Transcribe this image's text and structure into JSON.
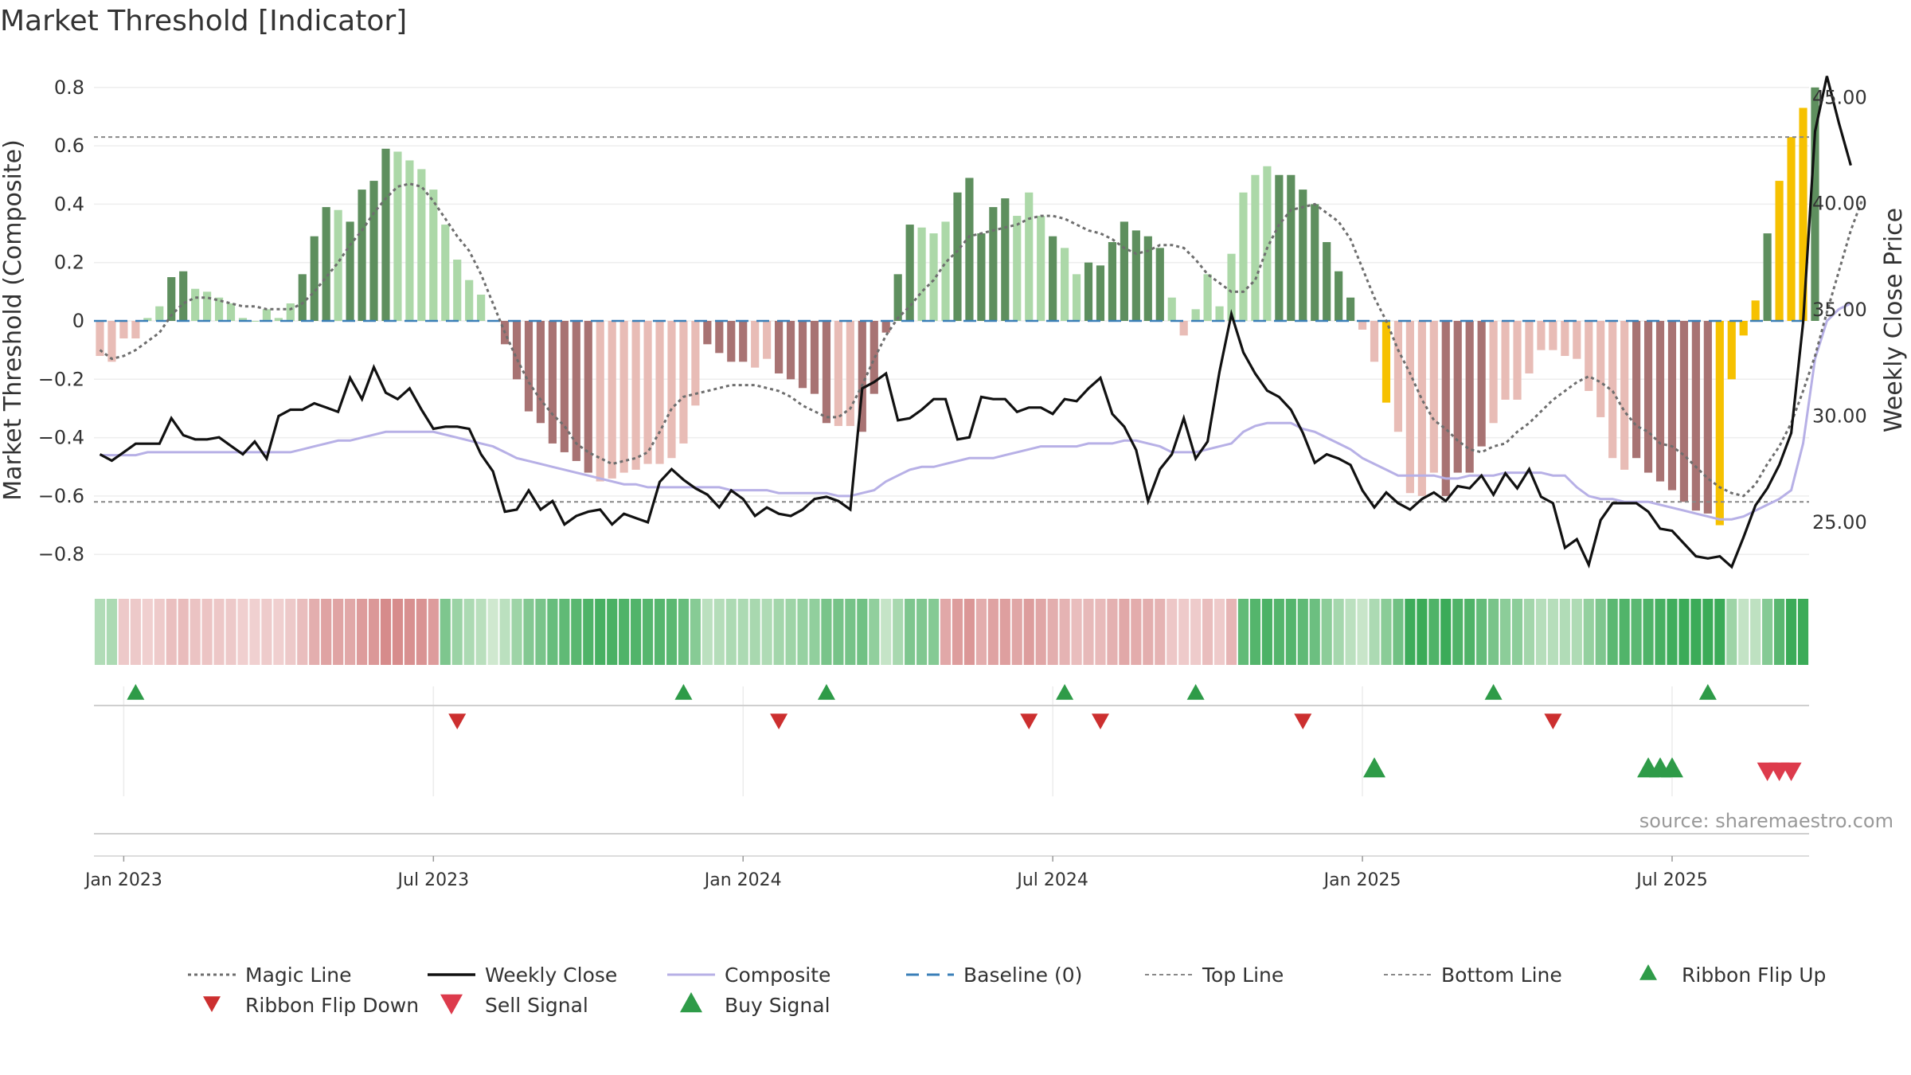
{
  "chart_data": {
    "type": "bar",
    "title": "Market Threshold [Indicator]",
    "ylabel": "Market Threshold (Composite)",
    "y2label": "Weekly Close Price",
    "ylim": [
      -0.88,
      0.8
    ],
    "y2lim": [
      22.2,
      46.4
    ],
    "yticks": [
      "0.8",
      "0.6",
      "0.4",
      "0.2",
      "0",
      "−0.2",
      "−0.4",
      "−0.6",
      "−0.8"
    ],
    "yticks_values": [
      0.8,
      0.6,
      0.4,
      0.2,
      0,
      -0.2,
      -0.4,
      -0.6,
      -0.8
    ],
    "y2ticks": [
      "45.00",
      "40.00",
      "35.00",
      "30.00",
      "25.00"
    ],
    "y2ticks_values": [
      45,
      40,
      35,
      30,
      25
    ],
    "xticks": [
      "Jan 2023",
      "Jul 2023",
      "Jan 2024",
      "Jul 2024",
      "Jan 2025",
      "Jul 2025"
    ],
    "xticks_weeks": [
      2,
      28,
      54,
      80,
      106,
      132
    ],
    "top_line": 0.63,
    "bottom_line": -0.62,
    "baseline": 0,
    "weeks": 144,
    "composite_bars": [
      -0.12,
      -0.14,
      -0.06,
      -0.06,
      0.01,
      0.05,
      0.15,
      0.17,
      0.11,
      0.1,
      0.08,
      0.06,
      0.01,
      0.0,
      0.04,
      0.01,
      0.06,
      0.16,
      0.29,
      0.39,
      0.38,
      0.34,
      0.45,
      0.48,
      0.59,
      0.58,
      0.55,
      0.52,
      0.45,
      0.33,
      0.21,
      0.14,
      0.09,
      0.0,
      -0.08,
      -0.2,
      -0.31,
      -0.35,
      -0.42,
      -0.45,
      -0.48,
      -0.52,
      -0.55,
      -0.54,
      -0.52,
      -0.51,
      -0.49,
      -0.49,
      -0.47,
      -0.42,
      -0.29,
      -0.08,
      -0.11,
      -0.14,
      -0.14,
      -0.16,
      -0.13,
      -0.18,
      -0.2,
      -0.23,
      -0.25,
      -0.35,
      -0.36,
      -0.36,
      -0.38,
      -0.25,
      -0.04,
      0.16,
      0.33,
      0.32,
      0.3,
      0.34,
      0.44,
      0.49,
      0.3,
      0.39,
      0.42,
      0.36,
      0.44,
      0.36,
      0.29,
      0.25,
      0.16,
      0.2,
      0.19,
      0.27,
      0.34,
      0.31,
      0.29,
      0.25,
      0.08,
      -0.05,
      0.04,
      0.16,
      0.05,
      0.23,
      0.44,
      0.5,
      0.53,
      0.5,
      0.5,
      0.45,
      0.4,
      0.27,
      0.17,
      0.08,
      -0.03,
      -0.14,
      -0.28,
      -0.38,
      -0.59,
      -0.6,
      -0.52,
      -0.6,
      -0.52,
      -0.52,
      -0.43,
      -0.35,
      -0.27,
      -0.27,
      -0.18,
      -0.1,
      -0.1,
      -0.12,
      -0.13,
      -0.24,
      -0.33,
      -0.47,
      -0.51,
      -0.47,
      -0.52,
      -0.55,
      -0.58,
      -0.62,
      -0.65,
      -0.66,
      -0.7,
      -0.2,
      -0.05,
      0.07,
      0.3,
      0.48,
      0.63,
      0.73,
      0.8
    ],
    "bar_colors": "LLLLllDDlllllllllDDDlDDDDllllllllLDDDDDDDDLLLLLLLLLDDDDLLDDDDDLLDDDDDLLLDDDDDLLLDLLDDDDDDDLLLLLLLLLDDDDDDDLLLLLLLDDDDLLLLLLLLLLLLDDDDDDDDDDDDDDDDLLLLLLLLLLL",
    "highlight_bars": [
      108,
      136,
      137,
      138,
      139,
      141,
      142,
      143
    ],
    "weekly_close": [
      28.2,
      27.9,
      28.3,
      28.7,
      28.7,
      28.7,
      29.9,
      29.1,
      28.9,
      28.9,
      29.0,
      28.6,
      28.2,
      28.8,
      28.0,
      30.0,
      30.3,
      30.3,
      30.6,
      30.4,
      30.2,
      31.8,
      30.8,
      32.3,
      31.1,
      30.8,
      31.3,
      30.3,
      29.4,
      29.5,
      29.5,
      29.4,
      28.2,
      27.4,
      25.5,
      25.6,
      26.5,
      25.6,
      26.0,
      24.9,
      25.3,
      25.5,
      25.6,
      24.9,
      25.4,
      25.2,
      25.0,
      26.9,
      27.5,
      27.0,
      26.6,
      26.3,
      25.7,
      26.5,
      26.1,
      25.3,
      25.7,
      25.4,
      25.3,
      25.6,
      26.1,
      26.2,
      26.0,
      25.6,
      31.3,
      31.6,
      32.0,
      29.8,
      29.9,
      30.3,
      30.8,
      30.8,
      28.9,
      29.0,
      30.9,
      30.8,
      30.8,
      30.2,
      30.4,
      30.4,
      30.1,
      30.8,
      30.7,
      31.3,
      31.8,
      30.1,
      29.5,
      28.4,
      26.0,
      27.5,
      28.2,
      29.9,
      28.0,
      28.8,
      32.1,
      34.8,
      33.0,
      32.0,
      31.2,
      30.9,
      30.3,
      29.2,
      27.8,
      28.2,
      28.0,
      27.7,
      26.5,
      25.7,
      26.4,
      25.9,
      25.6,
      26.1,
      26.4,
      26.0,
      26.7,
      26.6,
      27.2,
      26.3,
      27.3,
      26.6,
      27.5,
      26.2,
      25.9,
      23.8,
      24.2,
      23.0,
      25.1,
      25.9,
      25.9,
      25.9,
      25.5,
      24.7,
      24.6,
      24.0,
      23.4,
      23.3,
      23.4,
      22.9,
      24.3,
      25.8,
      26.6,
      27.7,
      29.2,
      34.4,
      43.4,
      46.0,
      43.8,
      41.8
    ],
    "composite_line": [
      -0.46,
      -0.46,
      -0.46,
      -0.46,
      -0.45,
      -0.45,
      -0.45,
      -0.45,
      -0.45,
      -0.45,
      -0.45,
      -0.45,
      -0.45,
      -0.45,
      -0.45,
      -0.45,
      -0.45,
      -0.44,
      -0.43,
      -0.42,
      -0.41,
      -0.41,
      -0.4,
      -0.39,
      -0.38,
      -0.38,
      -0.38,
      -0.38,
      -0.38,
      -0.39,
      -0.4,
      -0.41,
      -0.42,
      -0.43,
      -0.45,
      -0.47,
      -0.48,
      -0.49,
      -0.5,
      -0.51,
      -0.52,
      -0.53,
      -0.54,
      -0.55,
      -0.56,
      -0.56,
      -0.57,
      -0.57,
      -0.57,
      -0.57,
      -0.57,
      -0.57,
      -0.57,
      -0.58,
      -0.58,
      -0.58,
      -0.58,
      -0.59,
      -0.59,
      -0.59,
      -0.59,
      -0.59,
      -0.6,
      -0.6,
      -0.59,
      -0.58,
      -0.55,
      -0.53,
      -0.51,
      -0.5,
      -0.5,
      -0.49,
      -0.48,
      -0.47,
      -0.47,
      -0.47,
      -0.46,
      -0.45,
      -0.44,
      -0.43,
      -0.43,
      -0.43,
      -0.43,
      -0.42,
      -0.42,
      -0.42,
      -0.41,
      -0.41,
      -0.42,
      -0.43,
      -0.45,
      -0.45,
      -0.45,
      -0.44,
      -0.43,
      -0.42,
      -0.38,
      -0.36,
      -0.35,
      -0.35,
      -0.35,
      -0.37,
      -0.38,
      -0.4,
      -0.42,
      -0.44,
      -0.47,
      -0.49,
      -0.51,
      -0.53,
      -0.53,
      -0.53,
      -0.53,
      -0.54,
      -0.54,
      -0.53,
      -0.53,
      -0.53,
      -0.52,
      -0.52,
      -0.52,
      -0.52,
      -0.53,
      -0.53,
      -0.57,
      -0.6,
      -0.61,
      -0.61,
      -0.62,
      -0.62,
      -0.62,
      -0.63,
      -0.64,
      -0.65,
      -0.66,
      -0.67,
      -0.68,
      -0.68,
      -0.67,
      -0.65,
      -0.63,
      -0.61,
      -0.58,
      -0.42,
      -0.13,
      0.0,
      0.04,
      0.06
    ],
    "magic_line": [
      -0.1,
      -0.13,
      -0.12,
      -0.1,
      -0.07,
      -0.04,
      0.02,
      0.06,
      0.08,
      0.08,
      0.07,
      0.06,
      0.05,
      0.05,
      0.04,
      0.04,
      0.04,
      0.06,
      0.1,
      0.15,
      0.2,
      0.26,
      0.31,
      0.37,
      0.42,
      0.46,
      0.47,
      0.46,
      0.41,
      0.35,
      0.29,
      0.24,
      0.16,
      0.06,
      -0.04,
      -0.13,
      -0.21,
      -0.27,
      -0.32,
      -0.36,
      -0.42,
      -0.45,
      -0.47,
      -0.49,
      -0.48,
      -0.47,
      -0.45,
      -0.38,
      -0.3,
      -0.26,
      -0.25,
      -0.24,
      -0.23,
      -0.22,
      -0.22,
      -0.22,
      -0.23,
      -0.24,
      -0.26,
      -0.29,
      -0.31,
      -0.33,
      -0.33,
      -0.3,
      -0.22,
      -0.13,
      -0.05,
      0.01,
      0.05,
      0.1,
      0.14,
      0.2,
      0.24,
      0.29,
      0.3,
      0.31,
      0.32,
      0.33,
      0.35,
      0.36,
      0.36,
      0.35,
      0.33,
      0.31,
      0.3,
      0.28,
      0.25,
      0.23,
      0.24,
      0.26,
      0.26,
      0.25,
      0.21,
      0.16,
      0.13,
      0.1,
      0.1,
      0.14,
      0.25,
      0.33,
      0.38,
      0.39,
      0.4,
      0.37,
      0.34,
      0.28,
      0.18,
      0.08,
      0.0,
      -0.1,
      -0.18,
      -0.27,
      -0.34,
      -0.37,
      -0.41,
      -0.44,
      -0.45,
      -0.43,
      -0.42,
      -0.38,
      -0.35,
      -0.31,
      -0.27,
      -0.24,
      -0.21,
      -0.19,
      -0.21,
      -0.24,
      -0.31,
      -0.36,
      -0.38,
      -0.42,
      -0.43,
      -0.46,
      -0.5,
      -0.54,
      -0.57,
      -0.59,
      -0.6,
      -0.56,
      -0.49,
      -0.43,
      -0.35,
      -0.24,
      -0.12,
      0.03,
      0.17,
      0.31,
      0.42
    ],
    "ribbon": "LLDDDDDDDDDDDDDDDDDDDDDDDDDDDLLLLLLLLLLLLLLLLLLLLLLLLLLLLLLLLLLLLLLLLLLDDDDDDDDDDDDDDDDDDDDDDDDDLLLLLLLLLLLLLLLLLLLLLLLLLLLLLLLLLLLLLLLLLLLLLLLLLLLLLLLLLLL",
    "ribbon_flip_up": [
      3,
      49,
      61,
      81,
      92,
      117,
      135
    ],
    "ribbon_flip_down": [
      30,
      57,
      78,
      84,
      101,
      122
    ],
    "buy_signal": [
      107,
      130,
      131,
      132
    ],
    "sell_signal": [
      140,
      141,
      142
    ],
    "legend": [
      "Magic Line",
      "Weekly Close",
      "Composite",
      "Baseline (0)",
      "Top Line",
      "Bottom Line",
      "Ribbon Flip Up",
      "Ribbon Flip Down",
      "Sell Signal",
      "Buy Signal"
    ],
    "legend_placement": "bottom",
    "grid": true
  },
  "source": "source: sharemaestro.com",
  "colors": {
    "bar_pos_dark": "#5e8f5e",
    "bar_pos_light": "#acd8a8",
    "bar_neg_dark": "#a87373",
    "bar_neg_light": "#e8bcb6",
    "bar_highlight": "#f6c100",
    "weekly_close": "#111111",
    "composite": "#b7b0e6",
    "magic_line": "#6e6e6e",
    "baseline": "#3a7fb8",
    "threshold_lines": "#888888",
    "ribbon_green_light": "#cfe8cf",
    "ribbon_green_dark": "#3bab58",
    "ribbon_red_light": "#f0d0d0",
    "ribbon_red_dark": "#d68a8a",
    "up_marker": "#2e9b48",
    "down_marker": "#cc2f2f",
    "sell_marker": "#dd3b4c"
  }
}
